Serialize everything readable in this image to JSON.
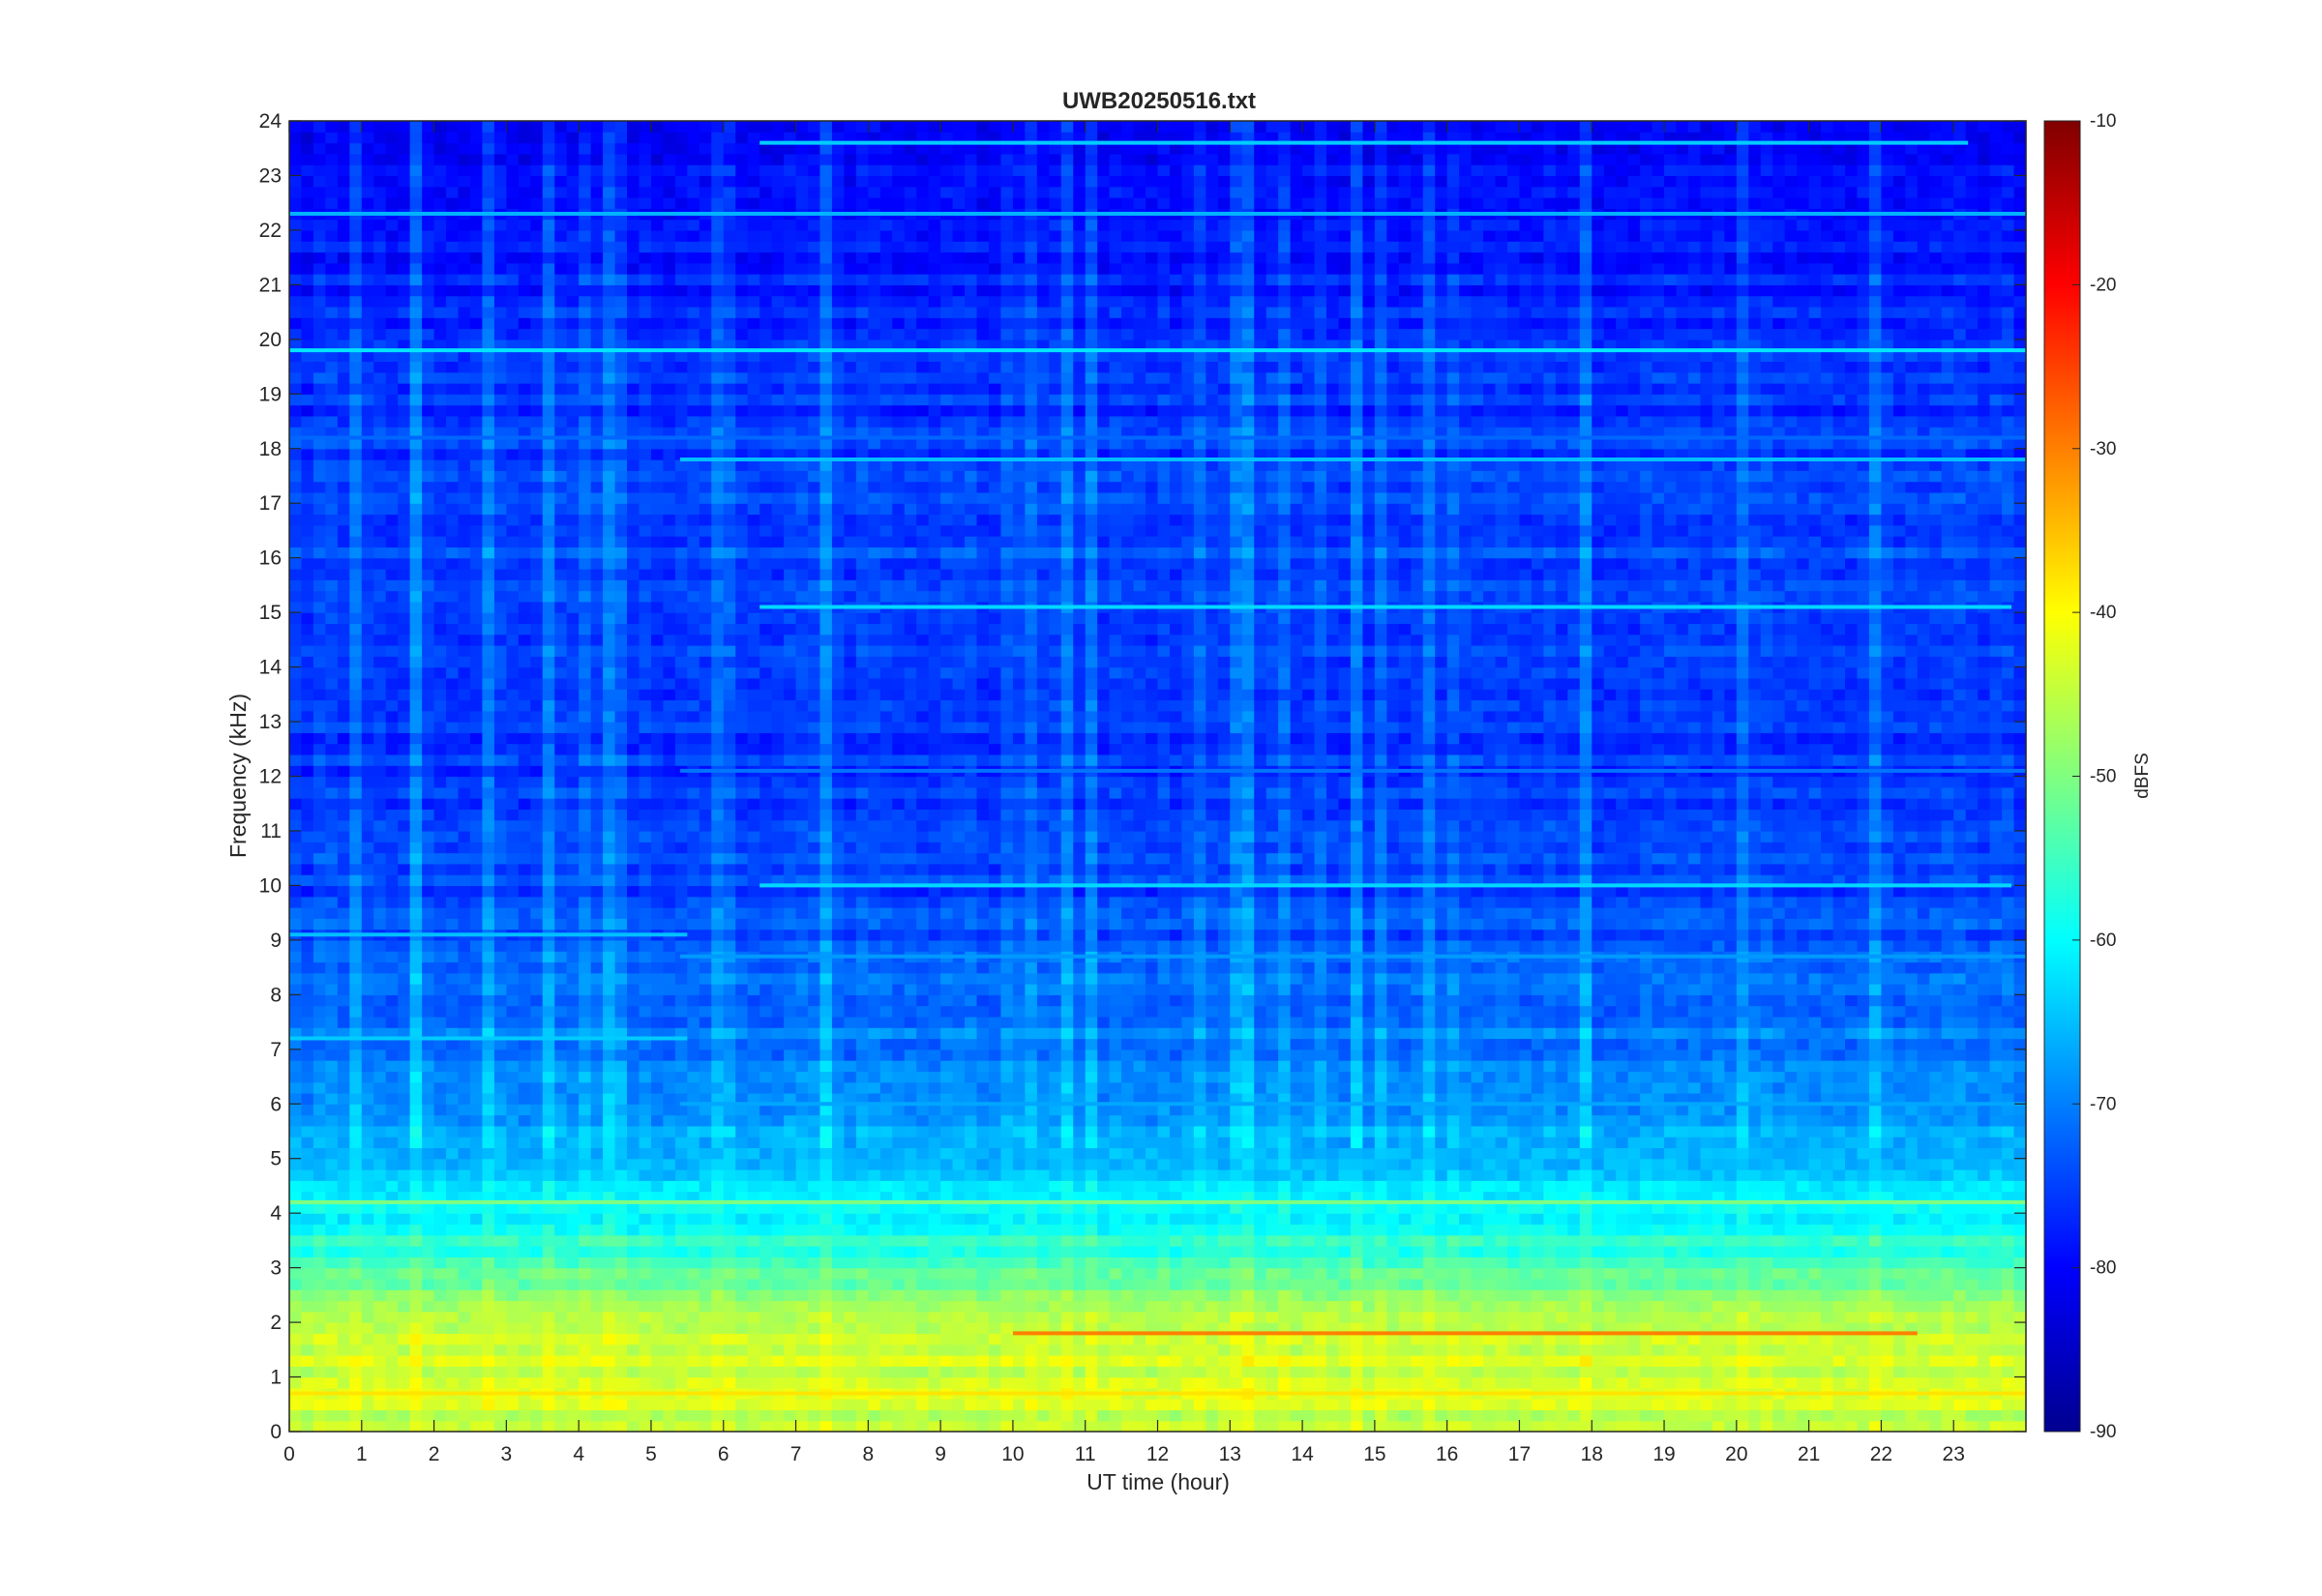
{
  "chart_data": {
    "type": "heatmap",
    "title": "UWB20250516.txt",
    "xlabel": "UT time (hour)",
    "ylabel": "Frequency (kHz)",
    "xlim": [
      0,
      24
    ],
    "ylim": [
      0,
      24
    ],
    "x_ticks": [
      "0",
      "1",
      "2",
      "3",
      "4",
      "5",
      "6",
      "7",
      "8",
      "9",
      "10",
      "11",
      "12",
      "13",
      "14",
      "15",
      "16",
      "17",
      "18",
      "19",
      "20",
      "21",
      "22",
      "23"
    ],
    "y_ticks": [
      "0",
      "1",
      "2",
      "3",
      "4",
      "5",
      "6",
      "7",
      "8",
      "9",
      "10",
      "11",
      "12",
      "13",
      "14",
      "15",
      "16",
      "17",
      "18",
      "19",
      "20",
      "21",
      "22",
      "23",
      "24"
    ],
    "colorbar": {
      "label": "dBFS",
      "range": [
        -90,
        -10
      ],
      "ticks": [
        "-10",
        "-20",
        "-30",
        "-40",
        "-50",
        "-60",
        "-70",
        "-80",
        "-90"
      ],
      "colormap": "jet"
    },
    "spectral_profile": {
      "frequency_khz": [
        0,
        0.5,
        1,
        1.5,
        2,
        2.5,
        3,
        3.5,
        4,
        4.5,
        5,
        6,
        7,
        8,
        9,
        10,
        12,
        14,
        16,
        18,
        20,
        22,
        24
      ],
      "level_dbfs": [
        -46,
        -45,
        -44,
        -45,
        -47,
        -50,
        -55,
        -58,
        -61,
        -63,
        -67,
        -70,
        -72,
        -73,
        -75,
        -76,
        -77,
        -77,
        -76,
        -77,
        -78,
        -80,
        -82
      ]
    },
    "tone_lines": [
      {
        "frequency_khz": 19.8,
        "level_dbfs": -62,
        "start_hour": 0,
        "end_hour": 24
      },
      {
        "frequency_khz": 22.3,
        "level_dbfs": -66,
        "start_hour": 0,
        "end_hour": 24
      },
      {
        "frequency_khz": 18.2,
        "level_dbfs": -72,
        "start_hour": 0,
        "end_hour": 24
      },
      {
        "frequency_khz": 17.8,
        "level_dbfs": -65,
        "start_hour": 5.4,
        "end_hour": 24
      },
      {
        "frequency_khz": 23.6,
        "level_dbfs": -64,
        "start_hour": 6.5,
        "end_hour": 23.2
      },
      {
        "frequency_khz": 15.1,
        "level_dbfs": -63,
        "start_hour": 6.5,
        "end_hour": 23.8
      },
      {
        "frequency_khz": 10.0,
        "level_dbfs": -63,
        "start_hour": 6.5,
        "end_hour": 23.8
      },
      {
        "frequency_khz": 12.1,
        "level_dbfs": -71,
        "start_hour": 5.4,
        "end_hour": 24
      },
      {
        "frequency_khz": 8.7,
        "level_dbfs": -68,
        "start_hour": 5.4,
        "end_hour": 24
      },
      {
        "frequency_khz": 6.0,
        "level_dbfs": -67,
        "start_hour": 5.4,
        "end_hour": 24
      },
      {
        "frequency_khz": 9.1,
        "level_dbfs": -65,
        "start_hour": 0,
        "end_hour": 5.5
      },
      {
        "frequency_khz": 7.2,
        "level_dbfs": -64,
        "start_hour": 0,
        "end_hour": 5.5
      },
      {
        "frequency_khz": 4.2,
        "level_dbfs": -50,
        "start_hour": 0,
        "end_hour": 24
      },
      {
        "frequency_khz": 1.8,
        "level_dbfs": -30,
        "start_hour": 10,
        "end_hour": 22.5
      },
      {
        "frequency_khz": 0.7,
        "level_dbfs": -38,
        "start_hour": 0,
        "end_hour": 24
      }
    ]
  }
}
